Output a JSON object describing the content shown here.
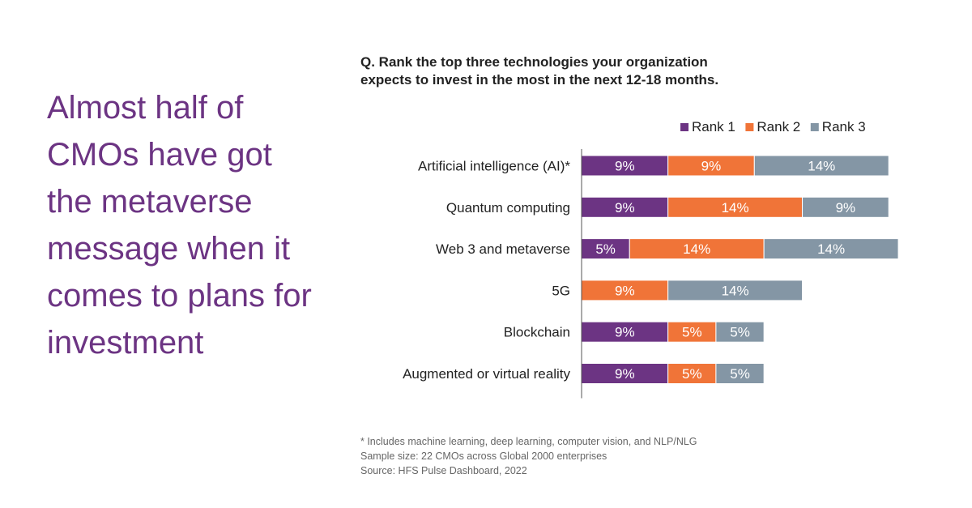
{
  "headline": "Almost half of CMOs have got the metaverse message when it comes to plans for investment",
  "question": {
    "line1": "Q. Rank the top three technologies your organization",
    "line2": "expects to invest in the most in the next 12-18 months."
  },
  "footnotes": {
    "note": "* Includes machine learning, deep learning, computer vision, and NLP/NLG",
    "sample": "Sample size: 22 CMOs across Global 2000 enterprises",
    "source": "Source: HFS Pulse Dashboard, 2022"
  },
  "chart_data": {
    "type": "bar",
    "orientation": "horizontal",
    "stacked": true,
    "categories": [
      "Artificial intelligence (AI)*",
      "Quantum computing",
      "Web 3 and metaverse",
      "5G",
      "Blockchain",
      "Augmented or virtual reality"
    ],
    "series": [
      {
        "name": "Rank 1",
        "color": "#6c3483",
        "values": [
          9,
          9,
          5,
          0,
          9,
          9
        ]
      },
      {
        "name": "Rank 2",
        "color": "#f07438",
        "values": [
          9,
          14,
          14,
          9,
          5,
          5
        ]
      },
      {
        "name": "Rank 3",
        "color": "#8496a5",
        "values": [
          14,
          9,
          14,
          14,
          5,
          5
        ]
      }
    ],
    "value_suffix": "%",
    "legend_position": "top-right",
    "grid": false
  }
}
